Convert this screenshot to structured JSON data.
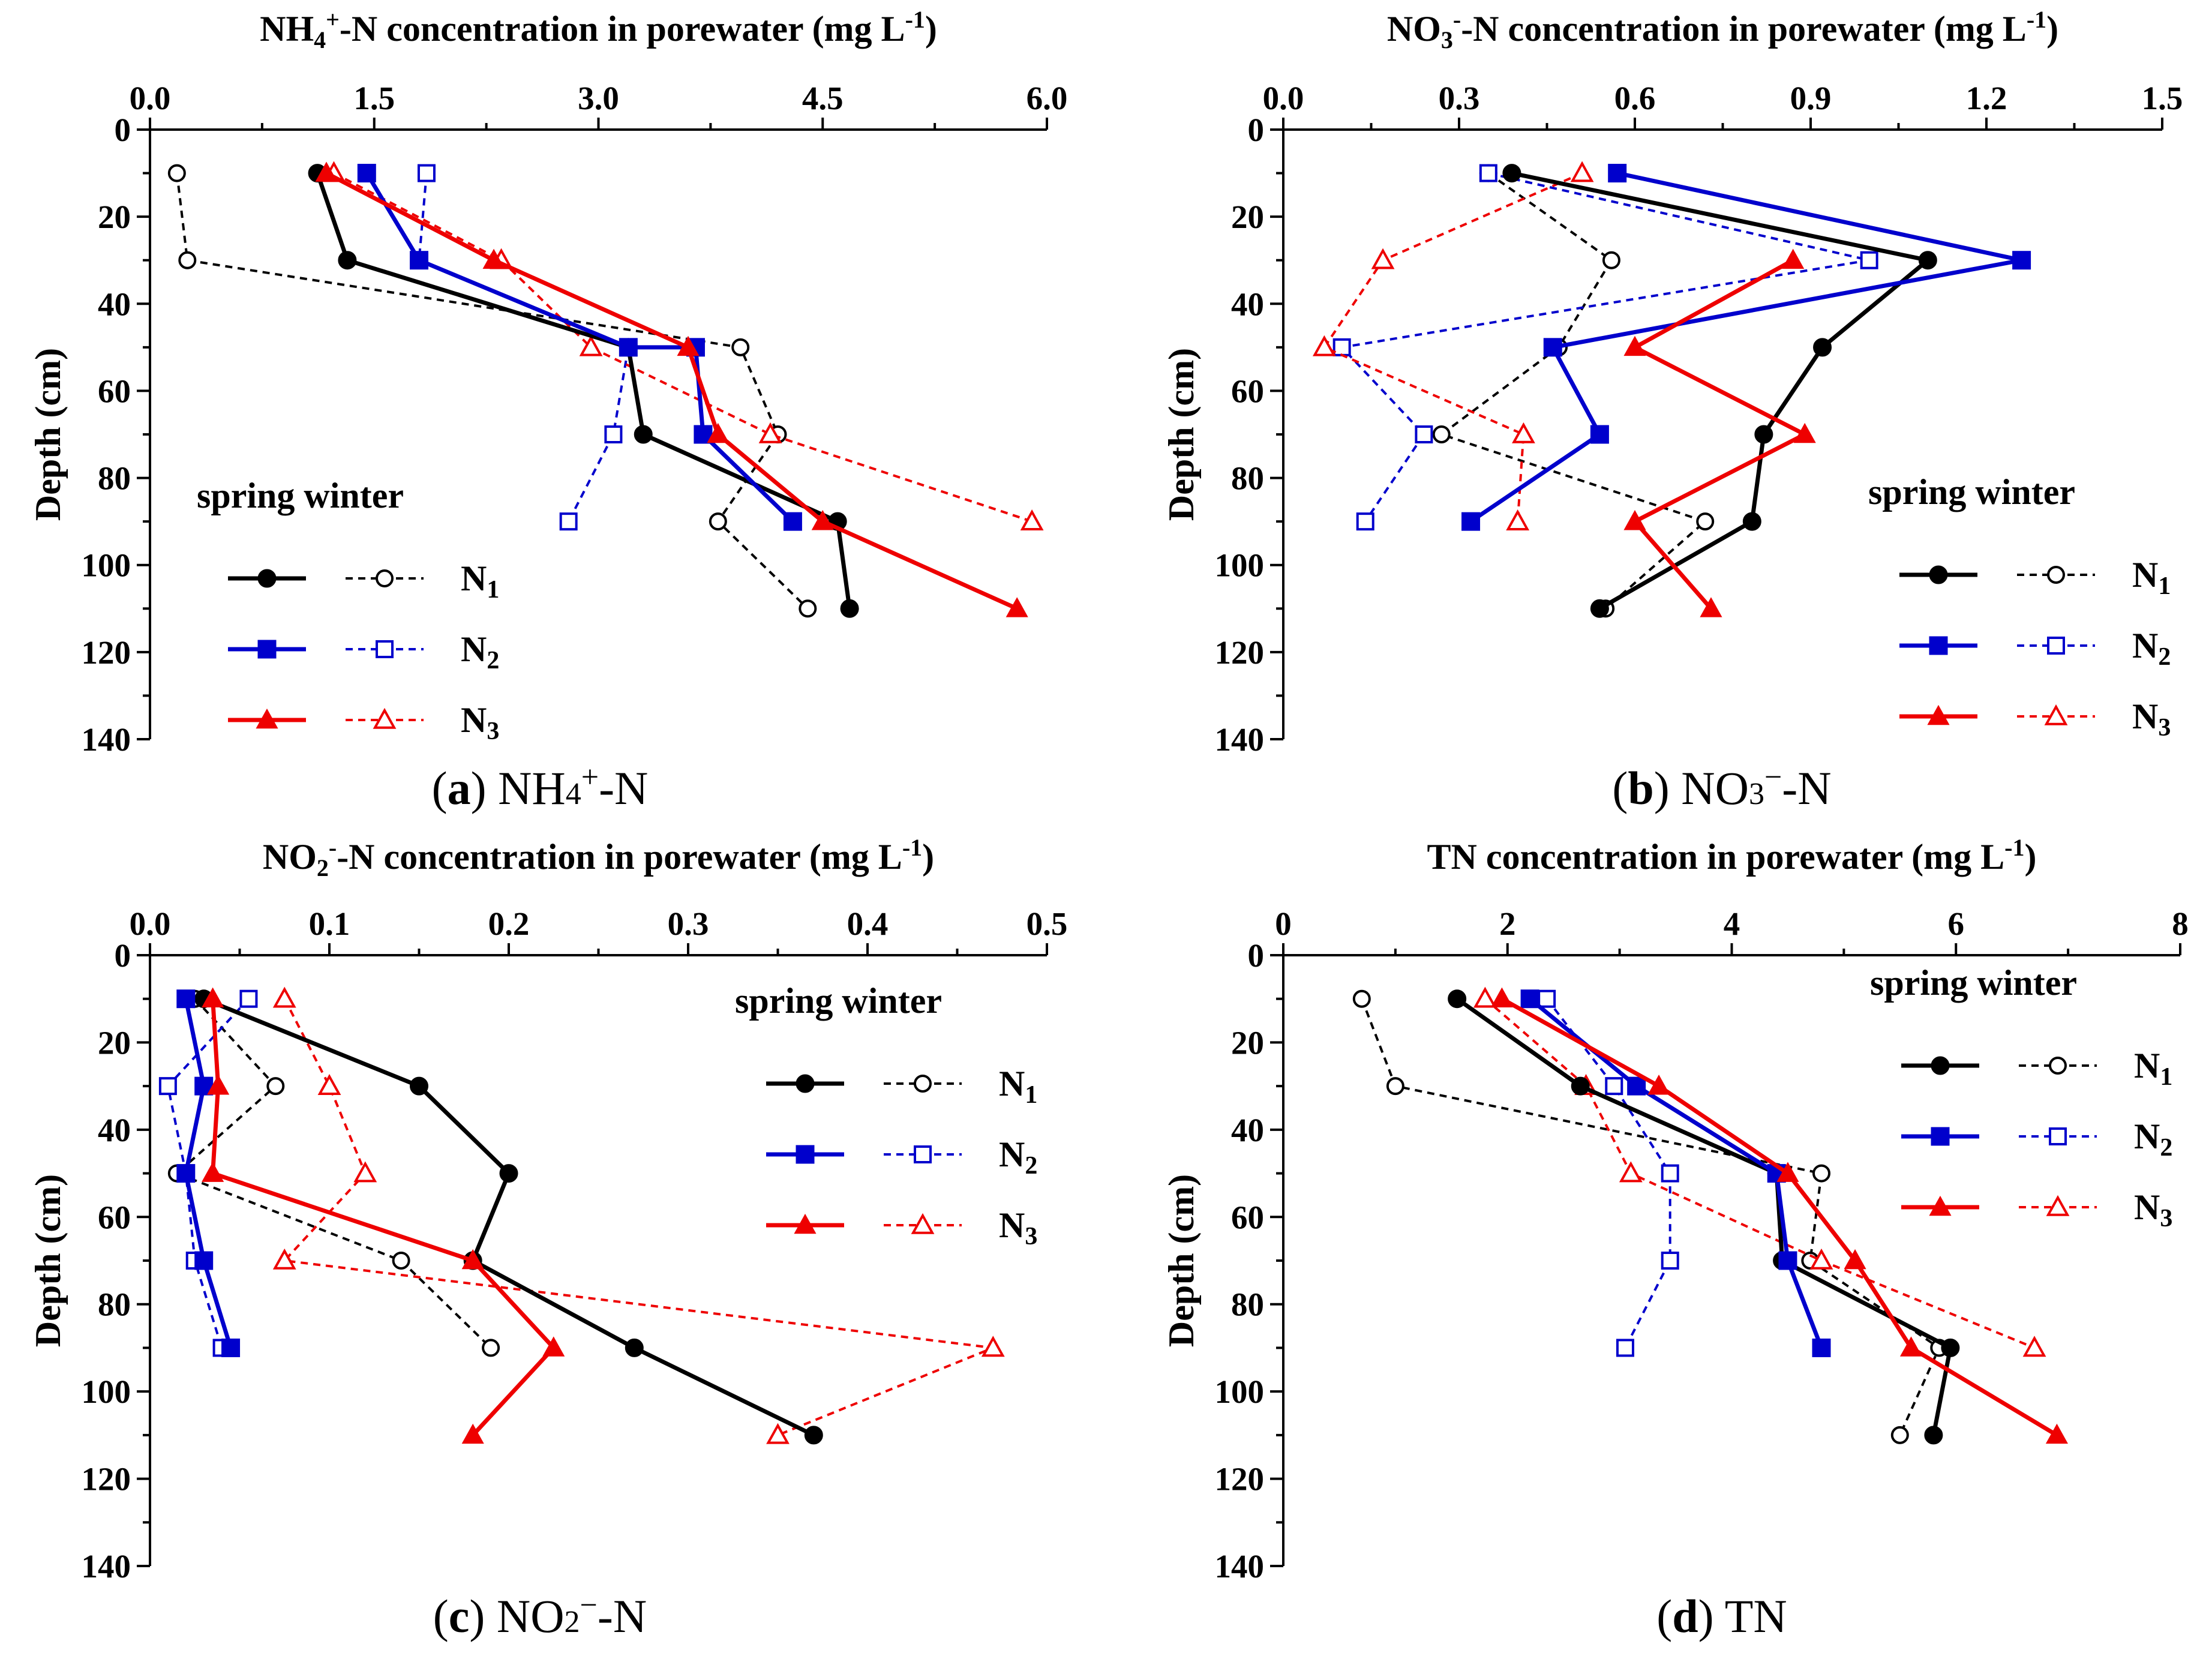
{
  "colors": {
    "N1": "#000000",
    "N2": "#0000cc",
    "N3": "#ee0000"
  },
  "legend": {
    "header": "spring winter",
    "labels": [
      "N",
      "N",
      "N"
    ],
    "subs": [
      "1",
      "2",
      "3"
    ]
  },
  "chart_data": [
    {
      "type": "line",
      "title_parts": [
        "NH",
        "4",
        "+",
        "-N concentration in porewater (mg L",
        "-1",
        ")"
      ],
      "caption_parts": [
        "(",
        "a",
        ") NH",
        "4",
        "+",
        "-N"
      ],
      "xlim": [
        0,
        6
      ],
      "xticks": [
        "0.0",
        "1.5",
        "3.0",
        "4.5",
        "6.0"
      ],
      "ylim": [
        0,
        140
      ],
      "yticks": [
        "0",
        "20",
        "40",
        "60",
        "80",
        "100",
        "120",
        "140"
      ],
      "ylabel": "Depth (cm)",
      "series": [
        {
          "name": "N1 spring",
          "values": [
            [
              1.12,
              10
            ],
            [
              1.32,
              30
            ],
            [
              3.2,
              50
            ],
            [
              3.3,
              70
            ],
            [
              4.6,
              90
            ],
            [
              4.68,
              110
            ]
          ]
        },
        {
          "name": "N1 winter",
          "values": [
            [
              0.18,
              10
            ],
            [
              0.25,
              30
            ],
            [
              3.95,
              50
            ],
            [
              4.2,
              70
            ],
            [
              3.8,
              90
            ],
            [
              4.4,
              110
            ]
          ]
        },
        {
          "name": "N2 spring",
          "values": [
            [
              1.45,
              10
            ],
            [
              1.8,
              30
            ],
            [
              3.2,
              50
            ],
            [
              3.65,
              50
            ],
            [
              3.7,
              70
            ],
            [
              4.3,
              90
            ]
          ]
        },
        {
          "name": "N2 winter",
          "values": [
            [
              1.85,
              10
            ],
            [
              1.8,
              30
            ],
            [
              3.2,
              50
            ],
            [
              3.1,
              70
            ],
            [
              2.8,
              90
            ]
          ]
        },
        {
          "name": "N3 spring",
          "values": [
            [
              1.18,
              10
            ],
            [
              2.3,
              30
            ],
            [
              3.6,
              50
            ],
            [
              3.8,
              70
            ],
            [
              4.5,
              90
            ],
            [
              5.8,
              110
            ]
          ]
        },
        {
          "name": "N3 winter",
          "values": [
            [
              1.23,
              10
            ],
            [
              2.35,
              30
            ],
            [
              2.95,
              50
            ],
            [
              4.15,
              70
            ],
            [
              5.9,
              90
            ]
          ]
        }
      ]
    },
    {
      "type": "line",
      "title_parts": [
        "NO",
        "3",
        "-",
        "-N concentration in porewater (mg L",
        "-1",
        ")"
      ],
      "caption_parts": [
        "(",
        "b",
        ") NO",
        "3",
        "−",
        "-N"
      ],
      "xlim": [
        0,
        1.5
      ],
      "xticks": [
        "0.0",
        "0.3",
        "0.6",
        "0.9",
        "1.2",
        "1.5"
      ],
      "ylim": [
        0,
        140
      ],
      "yticks": [
        "0",
        "20",
        "40",
        "60",
        "80",
        "100",
        "120",
        "140"
      ],
      "ylabel": "Depth (cm)",
      "series": [
        {
          "name": "N1 spring",
          "values": [
            [
              0.39,
              10
            ],
            [
              1.1,
              30
            ],
            [
              0.92,
              50
            ],
            [
              0.82,
              70
            ],
            [
              0.8,
              90
            ],
            [
              0.54,
              110
            ]
          ]
        },
        {
          "name": "N1 winter",
          "values": [
            [
              0.35,
              10
            ],
            [
              0.56,
              30
            ],
            [
              0.47,
              50
            ],
            [
              0.27,
              70
            ],
            [
              0.72,
              90
            ],
            [
              0.55,
              110
            ]
          ]
        },
        {
          "name": "N2 spring",
          "values": [
            [
              0.57,
              10
            ],
            [
              1.26,
              30
            ],
            [
              0.46,
              50
            ],
            [
              0.54,
              70
            ],
            [
              0.32,
              90
            ]
          ]
        },
        {
          "name": "N2 winter",
          "values": [
            [
              0.35,
              10
            ],
            [
              1.0,
              30
            ],
            [
              0.1,
              50
            ],
            [
              0.24,
              70
            ],
            [
              0.14,
              90
            ]
          ]
        },
        {
          "name": "N3 spring",
          "values": [
            [
              0.87,
              30
            ],
            [
              0.6,
              50
            ],
            [
              0.89,
              70
            ],
            [
              0.6,
              90
            ],
            [
              0.73,
              110
            ]
          ]
        },
        {
          "name": "N3 winter",
          "values": [
            [
              0.51,
              10
            ],
            [
              0.17,
              30
            ],
            [
              0.07,
              50
            ],
            [
              0.41,
              70
            ],
            [
              0.4,
              90
            ]
          ]
        }
      ]
    },
    {
      "type": "line",
      "title_parts": [
        "NO",
        "2",
        "-",
        "-N concentration in porewater (mg L",
        "-1",
        ")"
      ],
      "caption_parts": [
        "(",
        "c",
        ") NO",
        "2",
        "−",
        "-N"
      ],
      "xlim": [
        0,
        0.5
      ],
      "xticks": [
        "0.0",
        "0.1",
        "0.2",
        "0.3",
        "0.4",
        "0.5"
      ],
      "ylim": [
        0,
        140
      ],
      "yticks": [
        "0",
        "20",
        "40",
        "60",
        "80",
        "100",
        "120",
        "140"
      ],
      "ylabel": "Depth (cm)",
      "series": [
        {
          "name": "N1 spring",
          "values": [
            [
              0.03,
              10
            ],
            [
              0.15,
              30
            ],
            [
              0.2,
              50
            ],
            [
              0.18,
              70
            ],
            [
              0.27,
              90
            ],
            [
              0.37,
              110
            ]
          ]
        },
        {
          "name": "N1 winter",
          "values": [
            [
              0.025,
              10
            ],
            [
              0.07,
              30
            ],
            [
              0.015,
              50
            ],
            [
              0.14,
              70
            ],
            [
              0.19,
              90
            ]
          ]
        },
        {
          "name": "N2 spring",
          "values": [
            [
              0.02,
              10
            ],
            [
              0.03,
              30
            ],
            [
              0.02,
              50
            ],
            [
              0.03,
              70
            ],
            [
              0.045,
              90
            ]
          ]
        },
        {
          "name": "N2 winter",
          "values": [
            [
              0.055,
              10
            ],
            [
              0.01,
              30
            ],
            [
              0.02,
              50
            ],
            [
              0.025,
              70
            ],
            [
              0.04,
              90
            ]
          ]
        },
        {
          "name": "N3 spring",
          "values": [
            [
              0.035,
              10
            ],
            [
              0.038,
              30
            ],
            [
              0.035,
              50
            ],
            [
              0.18,
              70
            ],
            [
              0.225,
              90
            ],
            [
              0.18,
              110
            ]
          ]
        },
        {
          "name": "N3 winter",
          "values": [
            [
              0.075,
              10
            ],
            [
              0.1,
              30
            ],
            [
              0.12,
              50
            ],
            [
              0.075,
              70
            ],
            [
              0.47,
              90
            ],
            [
              0.35,
              110
            ]
          ]
        }
      ]
    },
    {
      "type": "line",
      "title_parts": [
        "TN concentration in porewater (mg L",
        "-1",
        ")"
      ],
      "caption_parts": [
        "(",
        "d",
        ") TN"
      ],
      "xlim": [
        0,
        8
      ],
      "xticks": [
        "0",
        "2",
        "4",
        "6",
        "8"
      ],
      "ylim": [
        0,
        140
      ],
      "yticks": [
        "0",
        "20",
        "40",
        "60",
        "80",
        "100",
        "120",
        "140"
      ],
      "ylabel": "Depth (cm)",
      "series": [
        {
          "name": "N1 spring",
          "values": [
            [
              1.55,
              10
            ],
            [
              2.65,
              30
            ],
            [
              4.4,
              50
            ],
            [
              4.45,
              70
            ],
            [
              5.95,
              90
            ],
            [
              5.8,
              110
            ]
          ]
        },
        {
          "name": "N1 winter",
          "values": [
            [
              0.7,
              10
            ],
            [
              1.0,
              30
            ],
            [
              4.8,
              50
            ],
            [
              4.7,
              70
            ],
            [
              5.85,
              90
            ],
            [
              5.5,
              110
            ]
          ]
        },
        {
          "name": "N2 spring",
          "values": [
            [
              2.2,
              10
            ],
            [
              3.15,
              30
            ],
            [
              4.4,
              50
            ],
            [
              4.5,
              70
            ],
            [
              4.8,
              90
            ]
          ]
        },
        {
          "name": "N2 winter",
          "values": [
            [
              2.35,
              10
            ],
            [
              2.95,
              30
            ],
            [
              3.45,
              50
            ],
            [
              3.45,
              70
            ],
            [
              3.05,
              90
            ]
          ]
        },
        {
          "name": "N3 spring",
          "values": [
            [
              1.95,
              10
            ],
            [
              3.35,
              30
            ],
            [
              4.5,
              50
            ],
            [
              5.1,
              70
            ],
            [
              5.6,
              90
            ],
            [
              6.9,
              110
            ]
          ]
        },
        {
          "name": "N3 winter",
          "values": [
            [
              1.8,
              10
            ],
            [
              2.7,
              30
            ],
            [
              3.1,
              50
            ],
            [
              4.8,
              70
            ],
            [
              6.7,
              90
            ]
          ]
        }
      ]
    }
  ]
}
